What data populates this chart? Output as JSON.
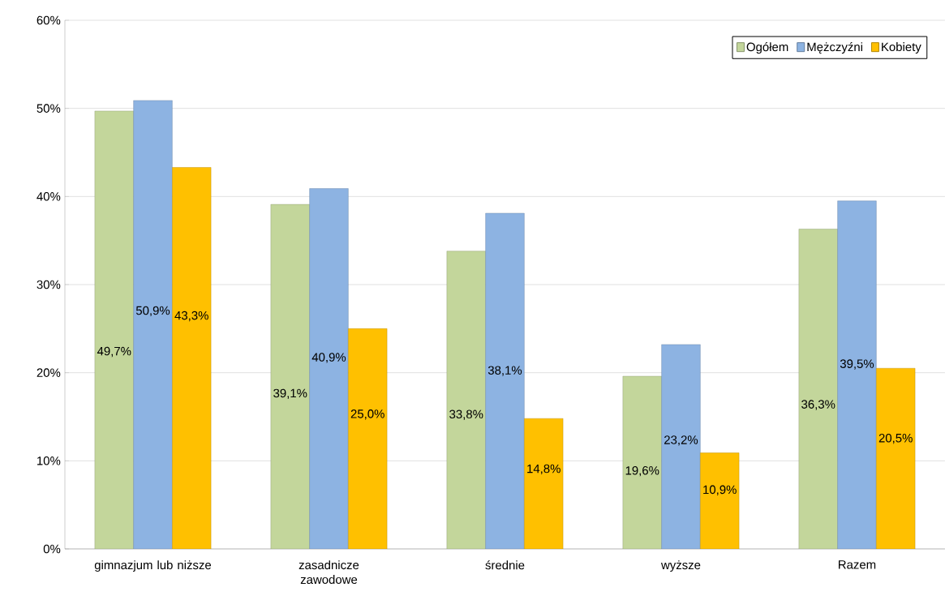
{
  "chart_data": {
    "type": "bar",
    "categories": [
      "gimnazjum lub niższe",
      "zasadnicze zawodowe",
      "średnie",
      "wyższe",
      "Razem"
    ],
    "ylim": [
      0,
      60
    ],
    "yticks": [
      {
        "value": 0,
        "label": "0%"
      },
      {
        "value": 10,
        "label": "10%"
      },
      {
        "value": 20,
        "label": "20%"
      },
      {
        "value": 30,
        "label": "30%"
      },
      {
        "value": 40,
        "label": "40%"
      },
      {
        "value": 50,
        "label": "50%"
      },
      {
        "value": 60,
        "label": "60%"
      }
    ],
    "grid": "y",
    "legend": "top right",
    "series": [
      {
        "name": "Ogółem",
        "color": "#c3d69b",
        "values": [
          49.7,
          39.1,
          33.8,
          19.6,
          36.3
        ],
        "value_labels": [
          "49,7%",
          "39,1%",
          "33,8%",
          "19,6%",
          "36,3%"
        ]
      },
      {
        "name": "Mężczyźni",
        "color": "#8db3e2",
        "values": [
          50.9,
          40.9,
          38.1,
          23.2,
          39.5
        ],
        "value_labels": [
          "50,9%",
          "40,9%",
          "38,1%",
          "23,2%",
          "39,5%"
        ]
      },
      {
        "name": "Kobiety",
        "color": "#ffc000",
        "values": [
          43.3,
          25.0,
          14.8,
          10.9,
          20.5
        ],
        "value_labels": [
          "43,3%",
          "25,0%",
          "14,8%",
          "10,9%",
          "20,5%"
        ]
      }
    ]
  }
}
